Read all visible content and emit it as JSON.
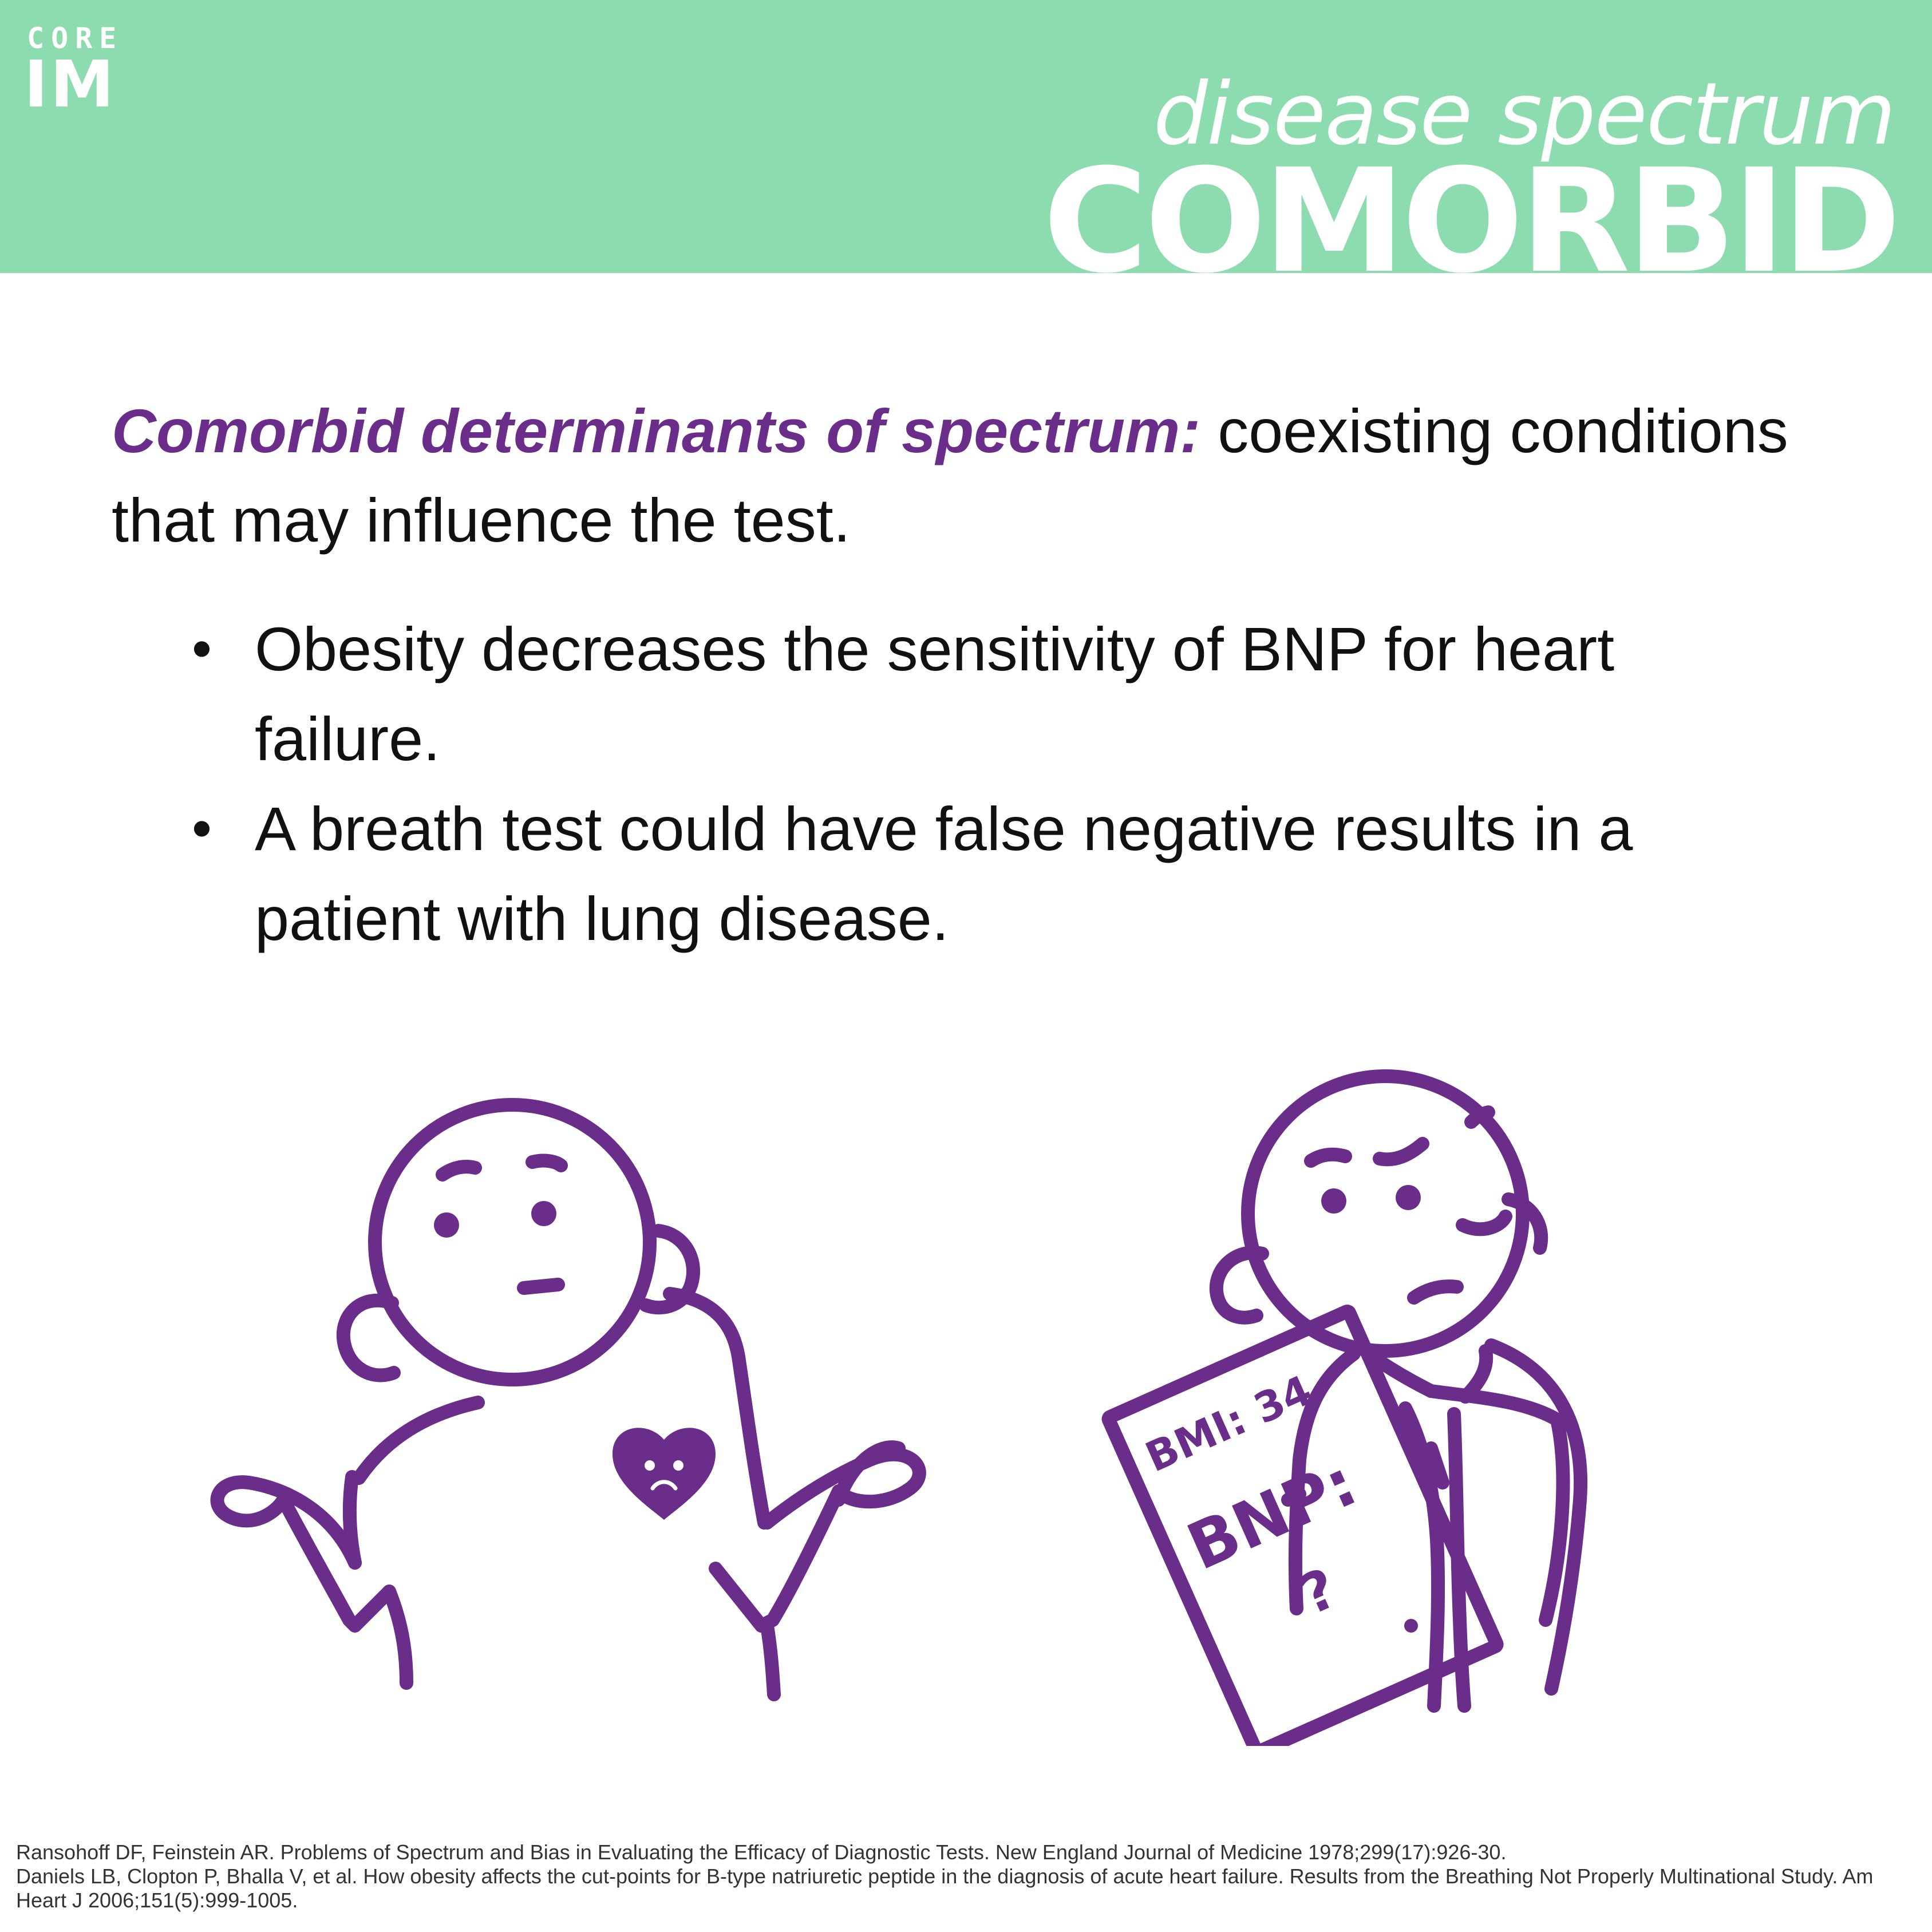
{
  "banner": {
    "logo_core": "CORE",
    "logo_im": "IM",
    "subtitle": "disease spectrum",
    "title": "COMORBID"
  },
  "intro": {
    "term": "Comorbid determinants of spectrum:",
    "definition": " coexisting conditions that may influence the test."
  },
  "bullets": [
    "Obesity decreases the sensitivity of BNP for heart failure.",
    "A breath test could have false negative results in a patient with lung disease."
  ],
  "clipboard": {
    "bmi": "BMI: 34",
    "bnp": "BNP:",
    "question": "?"
  },
  "references": [
    "Ransohoff DF, Feinstein AR. Problems of Spectrum and Bias in Evaluating the Efficacy of Diagnostic Tests. New England Journal of Medicine 1978;299(17):926-30.",
    "Daniels LB, Clopton P, Bhalla V, et al. How obesity affects the cut-points for B-type natriuretic peptide in the diagnosis of acute heart failure. Results from the Breathing Not Properly Multinational Study. Am Heart J 2006;151(5):999-1005."
  ],
  "colors": {
    "banner": "#8ddcb0",
    "accent": "#6a2e8a",
    "text": "#111111"
  }
}
